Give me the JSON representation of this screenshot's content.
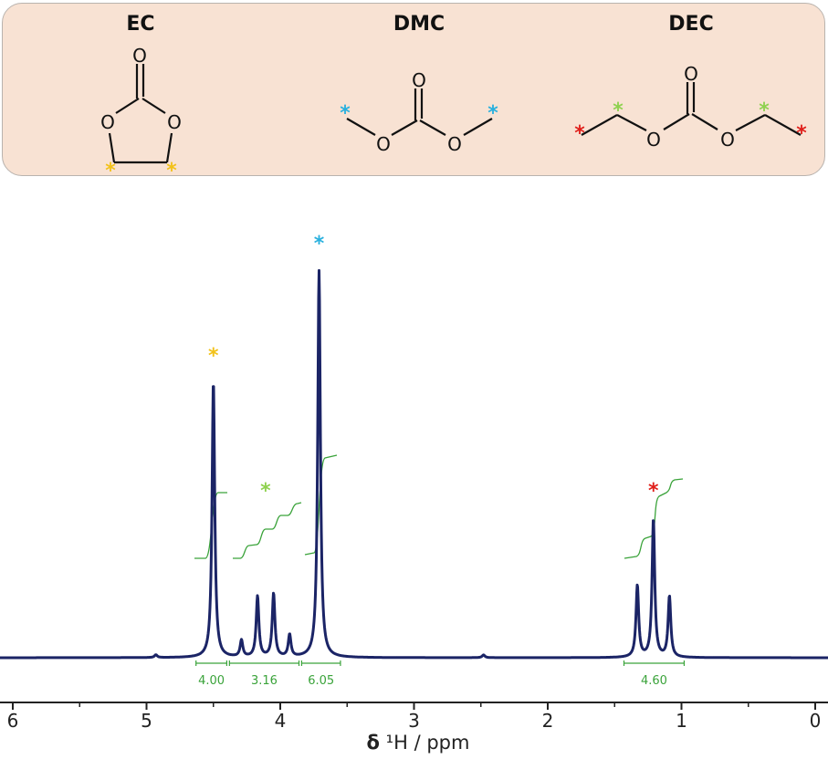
{
  "molecules": {
    "ec": {
      "name": "EC"
    },
    "dmc": {
      "name": "DMC"
    },
    "dec": {
      "name": "DEC"
    }
  },
  "atom_labels": {
    "oxygen": "O"
  },
  "marker": "*",
  "colors": {
    "spectrum": "#1b2466",
    "integral": "#3aa33a",
    "ec_marker": "#f2c21a",
    "dmc_marker": "#29b0de",
    "dec_ch2_marker": "#8fd14f",
    "dec_ch3_marker": "#e0201b",
    "panel_bg": "#f8e2d3"
  },
  "chart_data": {
    "type": "line",
    "xlabel_symbol": "δ",
    "xlabel_rest": "¹H / ppm",
    "xlim": [
      6.2,
      0
    ],
    "ylim": [
      0,
      1.4
    ],
    "x_reversed": true,
    "x_ticks": [
      "6",
      "5",
      "4",
      "3",
      "2",
      "1",
      "0"
    ],
    "x_tick_values": [
      6,
      5,
      4,
      3,
      2,
      1,
      0
    ],
    "series": [
      {
        "peaks": [
          {
            "ppm": 4.93,
            "height": 0.01
          },
          {
            "ppm": 4.5,
            "height": 1.0
          },
          {
            "ppm": 4.29,
            "height": 0.06
          },
          {
            "ppm": 4.17,
            "height": 0.22
          },
          {
            "ppm": 4.05,
            "height": 0.23
          },
          {
            "ppm": 3.93,
            "height": 0.08
          },
          {
            "ppm": 3.71,
            "height": 1.4
          },
          {
            "ppm": 2.48,
            "height": 0.01
          },
          {
            "ppm": 1.33,
            "height": 0.26
          },
          {
            "ppm": 1.21,
            "height": 0.5
          },
          {
            "ppm": 1.09,
            "height": 0.22
          }
        ]
      }
    ],
    "integrals": [
      {
        "label": "4.00",
        "from": 4.63,
        "to": 4.4
      },
      {
        "label": "3.16",
        "from": 4.38,
        "to": 3.86
      },
      {
        "label": "6.05",
        "from": 3.84,
        "to": 3.55
      },
      {
        "label": "4.60",
        "from": 1.43,
        "to": 0.98
      }
    ],
    "peak_markers": [
      {
        "ppm": 4.5,
        "color": "ec_marker"
      },
      {
        "ppm": 4.11,
        "color": "dec_ch2_marker"
      },
      {
        "ppm": 3.71,
        "color": "dmc_marker"
      },
      {
        "ppm": 1.21,
        "color": "dec_ch3_marker"
      }
    ]
  }
}
